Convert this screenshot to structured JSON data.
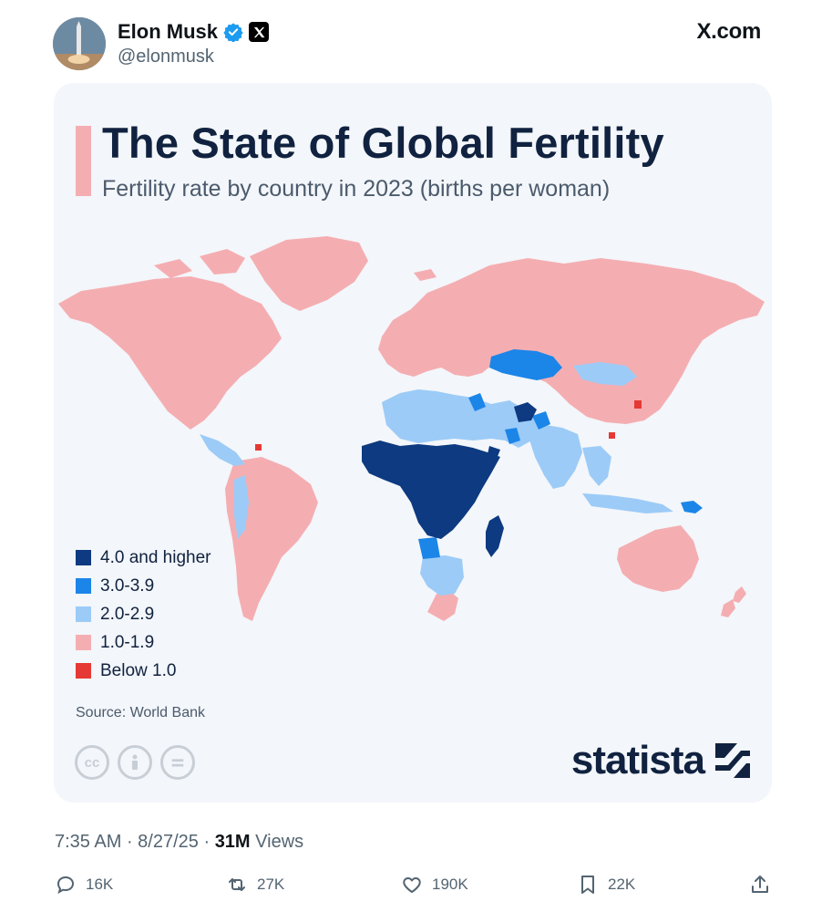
{
  "tweet": {
    "author_name": "Elon Musk",
    "handle": "@elonmusk",
    "source_label": "X.com",
    "icons": [
      "verified-badge-icon",
      "x-logo-icon"
    ],
    "time": "7:35 AM",
    "date": "8/27/25",
    "views_count": "31M",
    "views_label": "Views",
    "replies": "16K",
    "reposts": "27K",
    "likes": "190K",
    "bookmarks": "22K",
    "action_icons": [
      "reply-icon",
      "repost-icon",
      "like-icon",
      "bookmark-icon",
      "share-icon"
    ]
  },
  "card": {
    "title": "The State of Global Fertility",
    "subtitle": "Fertility rate by country in 2023 (births per woman)",
    "source": "Source: World Bank",
    "brand": "statista",
    "legend": [
      {
        "label": "4.0 and higher",
        "color": "#0d3a80"
      },
      {
        "label": "3.0-3.9",
        "color": "#1c85e8"
      },
      {
        "label": "2.0-2.9",
        "color": "#9ccbf7"
      },
      {
        "label": "1.0-1.9",
        "color": "#f4aeb2"
      },
      {
        "label": "Below 1.0",
        "color": "#e53935"
      }
    ],
    "license_icons": [
      "cc-icon",
      "attribution-icon",
      "no-derivatives-icon"
    ]
  },
  "colors": {
    "background": "#f3f6fa",
    "title": "#10223f",
    "accent_bar": "#f4aeb2"
  }
}
